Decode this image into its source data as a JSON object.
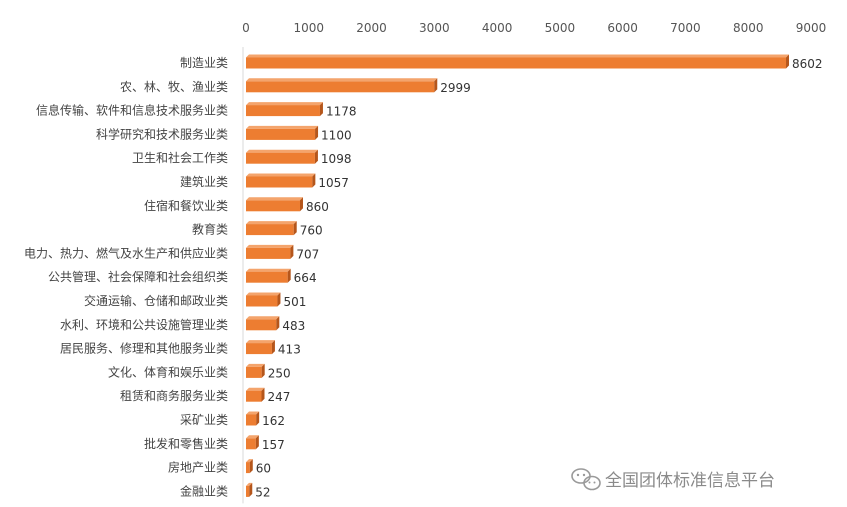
{
  "chart_data": {
    "type": "bar",
    "orientation": "horizontal",
    "categories": [
      "制造业类",
      "农、林、牧、渔业类",
      "信息传输、软件和信息技术服务业类",
      "科学研究和技术服务业类",
      "卫生和社会工作类",
      "建筑业类",
      "住宿和餐饮业类",
      "教育类",
      "电力、热力、燃气及水生产和供应业类",
      "公共管理、社会保障和社会组织类",
      "交通运输、仓储和邮政业类",
      "水利、环境和公共设施管理业类",
      "居民服务、修理和其他服务业类",
      "文化、体育和娱乐业类",
      "租赁和商务服务业类",
      "采矿业类",
      "批发和零售业类",
      "房地产业类",
      "金融业类"
    ],
    "values": [
      8602,
      2999,
      1178,
      1100,
      1098,
      1057,
      860,
      760,
      707,
      664,
      501,
      483,
      413,
      250,
      247,
      162,
      157,
      60,
      52
    ],
    "xlim": [
      0,
      9000
    ],
    "xticks": [
      "0",
      "1000",
      "2000",
      "3000",
      "4000",
      "5000",
      "6000",
      "7000",
      "8000",
      "9000"
    ],
    "axis_position": "top",
    "grid": false,
    "bar_color": "#ED7D31",
    "bar_shade_color": "#B5561B"
  },
  "watermark": {
    "text": "全国团体标准信息平台",
    "icon": "wechat-icon"
  }
}
